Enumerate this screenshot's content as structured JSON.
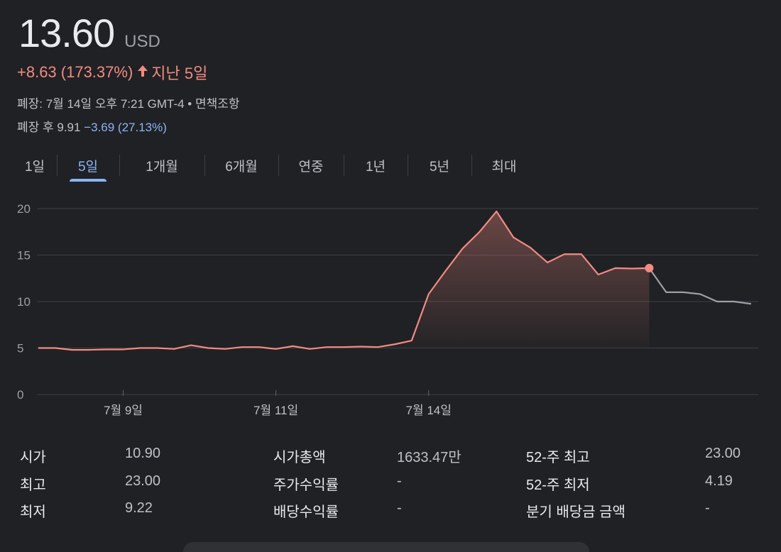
{
  "quote": {
    "price": "13.60",
    "currency": "USD",
    "change": "+8.63 (173.37%)",
    "period": "지난 5일",
    "close_info": "폐장: 7월 14일 오후 7:21 GMT-4 • 면책조항",
    "after_label": "폐장 후 9.91",
    "after_change": "−3.69 (27.13%)"
  },
  "tabs": [
    {
      "label": "1일",
      "active": false
    },
    {
      "label": "5일",
      "active": true
    },
    {
      "label": "1개월",
      "active": false
    },
    {
      "label": "6개월",
      "active": false
    },
    {
      "label": "연중",
      "active": false
    },
    {
      "label": "1년",
      "active": false
    },
    {
      "label": "5년",
      "active": false
    },
    {
      "label": "최대",
      "active": false
    }
  ],
  "chart_data": {
    "type": "line",
    "ylim": [
      0,
      20
    ],
    "yticks": [
      "0",
      "5",
      "10",
      "15",
      "20"
    ],
    "xticks": [
      {
        "label": "7월 9일",
        "index": 5
      },
      {
        "label": "7월 11일",
        "index": 14
      },
      {
        "label": "7월 14일",
        "index": 23
      }
    ],
    "grid": true,
    "colors": {
      "up": "#f28b82",
      "after_hours": "#9aa0a6",
      "grid": "#3c4043"
    },
    "series": [
      {
        "values": [
          5.0,
          5.0,
          4.8,
          4.8,
          4.85,
          4.85,
          5.0,
          5.0,
          4.9,
          5.3,
          5.0,
          4.9,
          5.1,
          5.1,
          4.9,
          5.2,
          4.9,
          5.1,
          5.1,
          5.15,
          5.1,
          5.4,
          5.8,
          10.8,
          13.3,
          15.7,
          17.5,
          19.7,
          16.9,
          15.8,
          14.2,
          15.1,
          15.1,
          12.9,
          13.6,
          13.55,
          13.6
        ]
      },
      {
        "values": [
          13.6,
          11.0,
          11.0,
          10.8,
          10.0,
          10.0,
          9.75
        ]
      }
    ]
  },
  "stats": [
    {
      "label": "시가",
      "value": "10.90"
    },
    {
      "label": "최고",
      "value": "23.00"
    },
    {
      "label": "최저",
      "value": "9.22"
    },
    {
      "label": "시가총액",
      "value": "1633.47만"
    },
    {
      "label": "주가수익률",
      "value": "-"
    },
    {
      "label": "배당수익률",
      "value": "-"
    },
    {
      "label": "52-주 최고",
      "value": "23.00"
    },
    {
      "label": "52-주 최저",
      "value": "4.19"
    },
    {
      "label": "분기 배당금 금액",
      "value": "-"
    }
  ]
}
